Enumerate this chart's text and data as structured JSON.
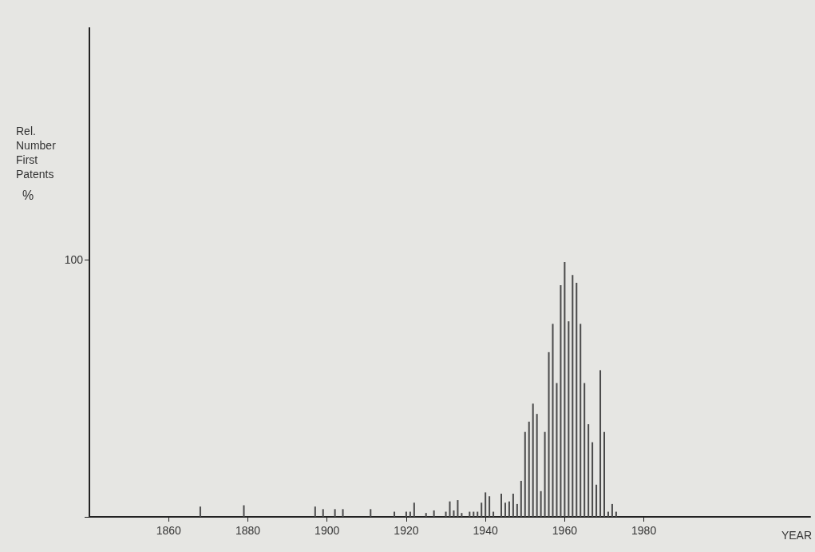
{
  "chart_data": {
    "type": "bar",
    "ylabel": "Rel. Number First Patents %",
    "xlabel": "YEAR",
    "x": [
      1868,
      1879,
      1897,
      1899,
      1902,
      1904,
      1911,
      1917,
      1920,
      1921,
      1922,
      1925,
      1927,
      1930,
      1931,
      1932,
      1933,
      1934,
      1936,
      1937,
      1938,
      1939,
      1940,
      1941,
      1942,
      1944,
      1945,
      1946,
      1947,
      1948,
      1949,
      1950,
      1951,
      1952,
      1953,
      1954,
      1955,
      1956,
      1957,
      1958,
      1959,
      1960,
      1961,
      1962,
      1963,
      1964,
      1965,
      1966,
      1967,
      1968,
      1969,
      1970,
      1971,
      1972,
      1973
    ],
    "values": [
      4,
      4.5,
      4,
      3,
      3,
      3,
      3,
      2,
      2,
      2,
      5.5,
      1.5,
      2.5,
      2,
      6,
      2.5,
      6.5,
      1.5,
      2,
      2,
      2,
      5.5,
      9.5,
      8,
      2,
      9,
      5.5,
      6,
      9,
      5,
      14,
      33,
      37,
      44,
      40,
      10,
      33,
      64,
      75,
      52,
      90,
      99,
      76,
      94,
      91,
      75,
      52,
      36,
      29,
      12.5,
      57,
      33,
      2,
      5,
      2
    ],
    "color": "#4a4a4a",
    "xlim": [
      1840,
      2022
    ],
    "xticks": [
      1860,
      1880,
      1900,
      1920,
      1940,
      1960,
      1980
    ],
    "ylim": [
      0,
      190
    ],
    "yticks": [
      {
        "value": 0,
        "label": null
      },
      100
    ],
    "grid": false
  }
}
